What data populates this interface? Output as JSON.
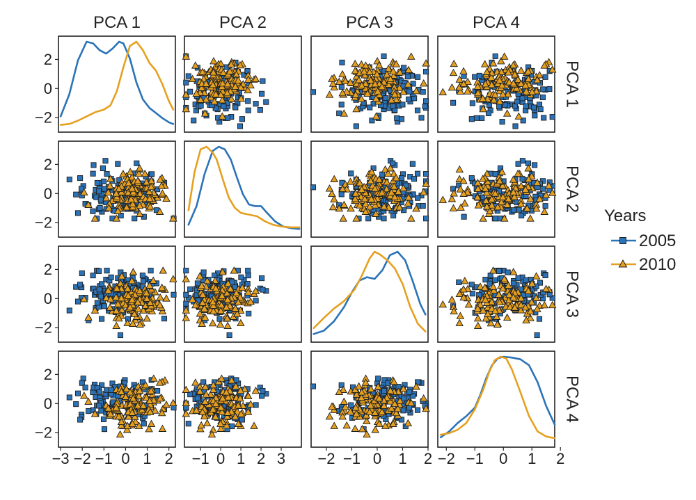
{
  "chart_data": {
    "type": "scatter",
    "layout": "pairs-matrix",
    "variables": [
      "PCA 1",
      "PCA 2",
      "PCA 3",
      "PCA 4"
    ],
    "diagonal": "density",
    "off_diagonal": "scatter",
    "axis_ticks": {
      "PCA 1": [
        -3,
        -2,
        -1,
        0,
        1,
        2
      ],
      "PCA 2": [
        -1,
        0,
        1,
        2,
        3
      ],
      "PCA 3": [
        -2,
        -1,
        0,
        1,
        2
      ],
      "PCA 4": [
        -2,
        -1,
        0,
        1,
        2
      ]
    },
    "tick_labels": {
      "PCA 1": [
        "−3",
        "−2",
        "−1",
        "0",
        "1",
        "2"
      ],
      "PCA 2": [
        "−1",
        "0",
        "1",
        "2",
        "3"
      ],
      "PCA 3": [
        "−2",
        "−1",
        "0",
        "1",
        "2"
      ],
      "PCA 4": [
        "−2",
        "−1",
        "0",
        "1",
        "2"
      ]
    },
    "row_tick_values": [
      -2,
      0,
      2
    ],
    "row_tick_labels": [
      "−2",
      "0",
      "2"
    ],
    "axis_ranges": {
      "PCA 1": [
        -3.1,
        2.3
      ],
      "PCA 2": [
        -1.8,
        4.0
      ],
      "PCA 3": [
        -2.6,
        2.0
      ],
      "PCA 4": [
        -2.3,
        1.8
      ]
    },
    "row_range": [
      -3.0,
      3.6
    ],
    "grid": false,
    "legend": {
      "title": "Years",
      "placement": "right",
      "entries": [
        {
          "label": "2005",
          "color": "#2B73B8",
          "marker": "square"
        },
        {
          "label": "2010",
          "color": "#E6A020",
          "marker": "triangle"
        }
      ]
    },
    "series": [
      {
        "name": "2005",
        "color": "#2B73B8",
        "marker": "square",
        "center": [
          -0.3,
          0.0,
          0.35,
          0.2
        ],
        "spread": [
          1.0,
          0.9,
          0.85,
          0.85
        ],
        "n": 110,
        "density": {
          "PCA 1": {
            "x": [
              -3.0,
              -2.6,
              -2.2,
              -1.8,
              -1.5,
              -1.2,
              -0.9,
              -0.6,
              -0.3,
              -0.1,
              0.2,
              0.5,
              0.8,
              1.1,
              1.4,
              1.7,
              2.0,
              2.2
            ],
            "y": [
              0.12,
              0.38,
              0.78,
              1.0,
              0.98,
              0.9,
              0.86,
              0.92,
              1.0,
              0.98,
              0.8,
              0.52,
              0.32,
              0.22,
              0.16,
              0.1,
              0.05,
              0.03
            ]
          },
          "PCA 2": {
            "x": [
              -1.6,
              -1.2,
              -0.8,
              -0.4,
              -0.1,
              0.2,
              0.5,
              0.8,
              1.1,
              1.4,
              1.7,
              2.0,
              2.3,
              2.7,
              3.1,
              3.5,
              3.9
            ],
            "y": [
              0.08,
              0.3,
              0.68,
              0.95,
              1.0,
              0.97,
              0.85,
              0.64,
              0.44,
              0.32,
              0.3,
              0.3,
              0.22,
              0.12,
              0.06,
              0.04,
              0.03
            ]
          },
          "PCA 3": {
            "x": [
              -2.5,
              -2.1,
              -1.7,
              -1.3,
              -1.0,
              -0.7,
              -0.4,
              -0.1,
              0.2,
              0.5,
              0.8,
              1.1,
              1.4,
              1.7,
              1.9
            ],
            "y": [
              0.03,
              0.07,
              0.18,
              0.35,
              0.52,
              0.66,
              0.7,
              0.68,
              0.78,
              0.96,
              1.0,
              0.9,
              0.65,
              0.38,
              0.26
            ]
          },
          "PCA 4": {
            "x": [
              -2.2,
              -1.9,
              -1.6,
              -1.3,
              -1.0,
              -0.8,
              -0.6,
              -0.4,
              -0.2,
              0.0,
              0.3,
              0.6,
              0.9,
              1.2,
              1.5,
              1.8
            ],
            "y": [
              0.05,
              0.12,
              0.22,
              0.3,
              0.4,
              0.56,
              0.75,
              0.9,
              0.98,
              1.0,
              0.99,
              0.97,
              0.9,
              0.7,
              0.42,
              0.2
            ]
          }
        }
      },
      {
        "name": "2010",
        "color": "#E6A020",
        "marker": "triangle",
        "center": [
          0.4,
          -0.1,
          -0.1,
          -0.15
        ],
        "spread": [
          0.8,
          0.75,
          0.8,
          0.75
        ],
        "n": 120,
        "density": {
          "PCA 1": {
            "x": [
              -3.0,
              -2.6,
              -2.2,
              -1.8,
              -1.4,
              -1.0,
              -0.7,
              -0.4,
              -0.1,
              0.2,
              0.5,
              0.8,
              1.1,
              1.4,
              1.7,
              2.0,
              2.2
            ],
            "y": [
              0.02,
              0.03,
              0.07,
              0.12,
              0.17,
              0.2,
              0.25,
              0.42,
              0.7,
              0.95,
              1.0,
              0.9,
              0.75,
              0.66,
              0.5,
              0.3,
              0.2
            ]
          },
          "PCA 2": {
            "x": [
              -1.6,
              -1.3,
              -1.0,
              -0.7,
              -0.4,
              -0.2,
              0.1,
              0.4,
              0.7,
              1.0,
              1.4,
              1.8,
              2.2,
              2.6,
              3.0,
              3.5,
              3.9
            ],
            "y": [
              0.25,
              0.7,
              0.97,
              1.0,
              0.93,
              0.85,
              0.62,
              0.4,
              0.28,
              0.22,
              0.2,
              0.18,
              0.12,
              0.08,
              0.06,
              0.05,
              0.05
            ]
          },
          "PCA 3": {
            "x": [
              -2.5,
              -2.1,
              -1.7,
              -1.3,
              -0.9,
              -0.6,
              -0.3,
              -0.1,
              0.1,
              0.4,
              0.7,
              1.0,
              1.3,
              1.6,
              1.9
            ],
            "y": [
              0.1,
              0.22,
              0.33,
              0.42,
              0.55,
              0.72,
              0.92,
              1.0,
              0.97,
              0.9,
              0.8,
              0.62,
              0.35,
              0.15,
              0.06
            ]
          },
          "PCA 4": {
            "x": [
              -2.2,
              -1.9,
              -1.6,
              -1.3,
              -1.0,
              -0.7,
              -0.5,
              -0.3,
              -0.1,
              0.1,
              0.3,
              0.6,
              0.9,
              1.2,
              1.5,
              1.8
            ],
            "y": [
              0.08,
              0.1,
              0.14,
              0.22,
              0.38,
              0.62,
              0.82,
              0.96,
              1.0,
              0.98,
              0.85,
              0.58,
              0.3,
              0.12,
              0.06,
              0.04
            ]
          }
        }
      }
    ]
  }
}
